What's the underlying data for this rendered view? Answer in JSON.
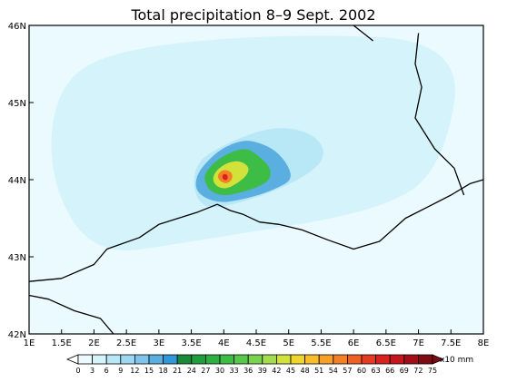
{
  "title": "Total precipitation 8–9 Sept. 2002",
  "map": {
    "projection": "lat-lon",
    "lon_range": [
      1,
      8
    ],
    "lat_range": [
      42,
      46
    ],
    "x_ticks": [
      "1E",
      "1.5E",
      "2E",
      "2.5E",
      "3E",
      "3.5E",
      "4E",
      "4.5E",
      "5E",
      "5.5E",
      "6E",
      "6.5E",
      "7E",
      "7.5E",
      "8E"
    ],
    "y_ticks": [
      "42N",
      "43N",
      "44N",
      "45N",
      "46N"
    ],
    "background_color": "#eafaff"
  },
  "colorbar": {
    "unit": "x10 mm",
    "levels": [
      "0",
      "3",
      "6",
      "9",
      "12",
      "15",
      "18",
      "21",
      "24",
      "27",
      "30",
      "33",
      "36",
      "39",
      "42",
      "45",
      "48",
      "51",
      "54",
      "57",
      "60",
      "63",
      "66",
      "69",
      "72",
      "75"
    ],
    "colors": [
      "#ffffff",
      "#eafaff",
      "#d4f3fb",
      "#b8e7f6",
      "#9ed8f0",
      "#7fc4ea",
      "#5aaee0",
      "#2f98d6",
      "#1a8a3a",
      "#1e9e3c",
      "#2bb041",
      "#3dbd46",
      "#58c84c",
      "#7ad24f",
      "#a3dc4c",
      "#d2e23a",
      "#f0d62c",
      "#f7bd2a",
      "#f7a028",
      "#f38025",
      "#ee6024",
      "#e63b22",
      "#d7221f",
      "#c3161d",
      "#a30d1a",
      "#7f0a14"
    ]
  },
  "chart_data": {
    "type": "heatmap",
    "title": "Total precipitation 8–9 Sept. 2002",
    "x_axis": {
      "label": "",
      "range": [
        1,
        8
      ],
      "ticks": [
        "1E",
        "1.5E",
        "2E",
        "2.5E",
        "3E",
        "3.5E",
        "4E",
        "4.5E",
        "5E",
        "5.5E",
        "6E",
        "6.5E",
        "7E",
        "7.5E",
        "8E"
      ]
    },
    "y_axis": {
      "label": "",
      "range": [
        42,
        46
      ],
      "ticks": [
        "42N",
        "43N",
        "44N",
        "45N",
        "46N"
      ]
    },
    "unit": "x10 mm",
    "color_levels": [
      0,
      3,
      6,
      9,
      12,
      15,
      18,
      21,
      24,
      27,
      30,
      33,
      36,
      39,
      42,
      45,
      48,
      51,
      54,
      57,
      60,
      63,
      66,
      69,
      72,
      75
    ],
    "precip_peak": {
      "lon": 4.0,
      "lat": 44.03,
      "value_approx": 66
    },
    "precip_regions": [
      {
        "level": 3,
        "polygon_lonlat": [
          [
            2.0,
            43.0
          ],
          [
            3.5,
            43.2
          ],
          [
            6.5,
            43.6
          ],
          [
            7.4,
            44.2
          ],
          [
            7.7,
            45.8
          ],
          [
            5.0,
            45.9
          ],
          [
            2.3,
            45.7
          ],
          [
            1.4,
            45.2
          ],
          [
            1.3,
            44.0
          ]
        ]
      },
      {
        "level": 6,
        "polygon_lonlat": [
          [
            3.6,
            43.6
          ],
          [
            4.3,
            43.7
          ],
          [
            5.2,
            44.0
          ],
          [
            5.6,
            44.3
          ],
          [
            5.4,
            44.6
          ],
          [
            4.8,
            44.7
          ],
          [
            4.1,
            44.5
          ],
          [
            3.5,
            44.2
          ]
        ]
      },
      {
        "level": 15,
        "polygon_lonlat": [
          [
            3.56,
            43.88
          ],
          [
            3.7,
            43.76
          ],
          [
            3.95,
            43.7
          ],
          [
            4.2,
            43.73
          ],
          [
            4.55,
            43.8
          ],
          [
            4.85,
            43.9
          ],
          [
            5.05,
            44.0
          ],
          [
            5.0,
            44.18
          ],
          [
            4.8,
            44.38
          ],
          [
            4.55,
            44.48
          ],
          [
            4.3,
            44.52
          ],
          [
            3.95,
            44.4
          ],
          [
            3.7,
            44.2
          ],
          [
            3.58,
            44.05
          ]
        ]
      },
      {
        "level": 30,
        "polygon_lonlat": [
          [
            3.7,
            43.98
          ],
          [
            3.8,
            43.84
          ],
          [
            4.0,
            43.79
          ],
          [
            4.25,
            43.83
          ],
          [
            4.52,
            43.9
          ],
          [
            4.72,
            44.0
          ],
          [
            4.72,
            44.16
          ],
          [
            4.55,
            44.3
          ],
          [
            4.35,
            44.42
          ],
          [
            4.05,
            44.34
          ],
          [
            3.82,
            44.2
          ],
          [
            3.71,
            44.08
          ]
        ]
      },
      {
        "level": 42,
        "polygon_lonlat": [
          [
            3.82,
            44.0
          ],
          [
            3.9,
            43.9
          ],
          [
            4.05,
            43.88
          ],
          [
            4.22,
            43.96
          ],
          [
            4.35,
            44.05
          ],
          [
            4.4,
            44.16
          ],
          [
            4.25,
            44.25
          ],
          [
            4.05,
            44.22
          ],
          [
            3.88,
            44.12
          ]
        ]
      },
      {
        "level": 54,
        "polygon_lonlat": [
          [
            3.9,
            44.03
          ],
          [
            3.97,
            43.96
          ],
          [
            4.07,
            43.95
          ],
          [
            4.14,
            44.02
          ],
          [
            4.12,
            44.1
          ],
          [
            4.02,
            44.13
          ],
          [
            3.93,
            44.1
          ]
        ]
      },
      {
        "level": 63,
        "polygon_lonlat": [
          [
            3.97,
            44.03
          ],
          [
            4.01,
            43.99
          ],
          [
            4.06,
            44.0
          ],
          [
            4.06,
            44.06
          ],
          [
            4.0,
            44.08
          ]
        ]
      }
    ],
    "coastlines": {
      "france_italy_coast": [
        [
          1.0,
          42.68
        ],
        [
          1.5,
          42.72
        ],
        [
          2.0,
          42.9
        ],
        [
          2.2,
          43.1
        ],
        [
          2.7,
          43.25
        ],
        [
          3.0,
          43.42
        ],
        [
          3.3,
          43.5
        ],
        [
          3.6,
          43.58
        ],
        [
          3.9,
          43.68
        ],
        [
          4.1,
          43.6
        ],
        [
          4.3,
          43.55
        ],
        [
          4.55,
          43.45
        ],
        [
          4.85,
          43.42
        ],
        [
          5.2,
          43.35
        ],
        [
          5.6,
          43.22
        ],
        [
          6.0,
          43.1
        ],
        [
          6.4,
          43.2
        ],
        [
          6.8,
          43.5
        ],
        [
          7.15,
          43.65
        ],
        [
          7.5,
          43.8
        ],
        [
          7.8,
          43.95
        ],
        [
          8.0,
          44.0
        ]
      ],
      "borders": [
        [
          [
            7.0,
            45.9
          ],
          [
            6.95,
            45.5
          ],
          [
            7.05,
            45.2
          ],
          [
            6.95,
            44.8
          ],
          [
            7.25,
            44.4
          ],
          [
            7.55,
            44.15
          ],
          [
            7.7,
            43.8
          ]
        ],
        [
          [
            6.0,
            46.0
          ],
          [
            6.15,
            45.9
          ],
          [
            6.3,
            45.8
          ]
        ]
      ],
      "corsica_spain_coast": [
        [
          1.0,
          42.5
        ],
        [
          1.3,
          42.45
        ],
        [
          1.7,
          42.3
        ],
        [
          2.1,
          42.2
        ],
        [
          2.3,
          42.0
        ]
      ]
    }
  }
}
